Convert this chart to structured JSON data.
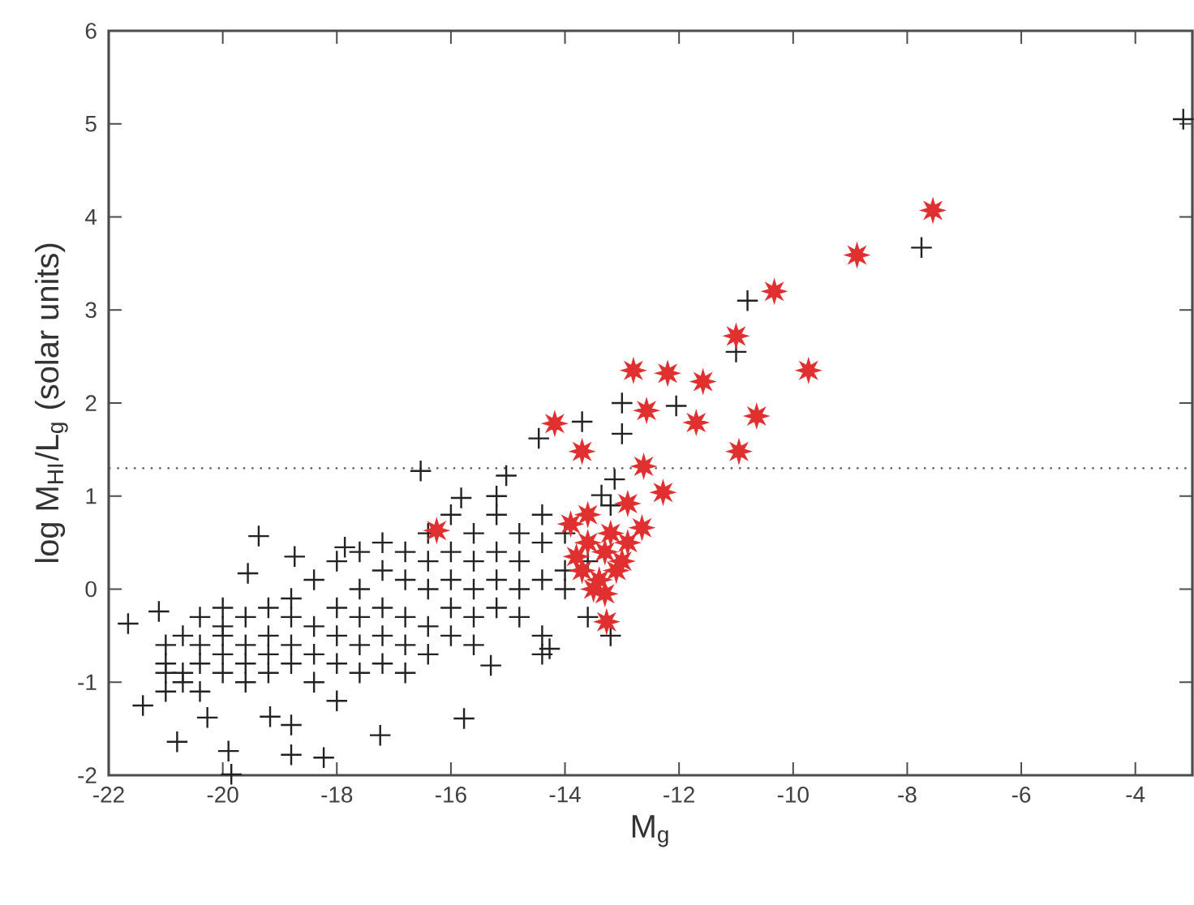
{
  "chart_data": {
    "type": "scatter",
    "xlabel": "M$_{g}$",
    "ylabel": "log M$_{HI}$/L$_{g}$ (solar units)",
    "xlim": [
      -22,
      -3
    ],
    "ylim": [
      -2,
      6
    ],
    "xticks": [
      -22,
      -20,
      -18,
      -16,
      -14,
      -12,
      -10,
      -8,
      -6,
      -4
    ],
    "yticks": [
      -2,
      -1,
      0,
      1,
      2,
      3,
      4,
      5,
      6
    ],
    "grid": false,
    "ref_lines": [
      {
        "axis": "y",
        "value": 1.3,
        "color": "#555555",
        "line_style": "dotted"
      }
    ],
    "series": [
      {
        "color": "#222222",
        "marker": "cross",
        "x": [
          -3.16,
          -7.75,
          -10.8,
          -11.0,
          -13.0,
          -12.05,
          -14.46,
          -13.7,
          -15.03,
          -13.36,
          -13.13,
          -13.0,
          -21.66,
          -21.4,
          -20.8,
          -20.27,
          -19.9,
          -19.85,
          -19.37,
          -18.74,
          -19.17,
          -18.8,
          -18.8,
          -18.23,
          -17.24,
          -15.77,
          -15.3,
          -16.53,
          -15.82,
          -17.86,
          -21.12,
          -19.56,
          -14.27,
          -21.0,
          -21.0,
          -21.0,
          -21.0,
          -20.7,
          -20.7,
          -20.7,
          -20.4,
          -20.4,
          -20.4,
          -20.4,
          -20.0,
          -20.0,
          -20.0,
          -20.0,
          -20.0,
          -19.6,
          -19.6,
          -19.6,
          -19.6,
          -19.2,
          -19.2,
          -19.2,
          -19.2,
          -18.8,
          -18.8,
          -18.8,
          -18.8,
          -18.4,
          -18.4,
          -18.4,
          -18.4,
          -18.0,
          -18.0,
          -18.0,
          -18.0,
          -18.0,
          -17.6,
          -17.6,
          -17.6,
          -17.6,
          -17.6,
          -17.2,
          -17.2,
          -17.2,
          -17.2,
          -17.2,
          -16.8,
          -16.8,
          -16.8,
          -16.8,
          -16.8,
          -16.4,
          -16.4,
          -16.4,
          -16.4,
          -16.4,
          -16.0,
          -16.0,
          -16.0,
          -16.0,
          -16.0,
          -15.6,
          -15.6,
          -15.6,
          -15.6,
          -15.6,
          -15.2,
          -15.2,
          -15.2,
          -15.2,
          -15.2,
          -14.8,
          -14.8,
          -14.8,
          -14.8,
          -14.4,
          -14.4,
          -14.4,
          -14.4,
          -14.4,
          -14.0,
          -14.0,
          -14.0,
          -13.6,
          -13.6,
          -13.2,
          -13.2
        ],
        "values": [
          5.05,
          3.67,
          3.1,
          2.55,
          2.0,
          1.97,
          1.62,
          1.8,
          1.22,
          1.01,
          1.18,
          1.67,
          -0.37,
          -1.25,
          -1.64,
          -1.38,
          -1.74,
          -1.99,
          0.57,
          0.35,
          -1.37,
          -1.46,
          -1.78,
          -1.81,
          -1.57,
          -1.39,
          -0.82,
          1.27,
          0.98,
          0.45,
          -0.24,
          0.17,
          -0.64,
          -0.9,
          -0.6,
          -1.1,
          -0.8,
          -0.5,
          -0.9,
          -1.0,
          -0.3,
          -0.6,
          -0.8,
          -1.1,
          -0.4,
          -0.7,
          -0.5,
          -0.9,
          -0.2,
          -0.6,
          -0.3,
          -0.8,
          -1.0,
          -0.5,
          -0.2,
          -0.7,
          -0.9,
          -0.6,
          -0.3,
          -0.1,
          -0.8,
          -0.4,
          -0.7,
          0.1,
          -1.0,
          -0.2,
          -0.5,
          -0.8,
          0.3,
          -1.2,
          -0.3,
          0.0,
          -0.6,
          0.4,
          -0.9,
          0.2,
          -0.2,
          -0.5,
          -0.8,
          0.5,
          0.1,
          -0.3,
          -0.6,
          0.4,
          -0.9,
          0.0,
          0.3,
          -0.4,
          -0.7,
          0.6,
          0.1,
          -0.2,
          0.4,
          -0.5,
          0.8,
          0.0,
          0.3,
          -0.3,
          -0.6,
          0.6,
          0.1,
          0.4,
          -0.2,
          0.8,
          1.0,
          0.0,
          0.3,
          0.6,
          -0.3,
          0.1,
          0.5,
          0.8,
          -0.5,
          -0.7,
          0.2,
          0.6,
          0.0,
          0.3,
          -0.3,
          -0.5,
          0.9
        ]
      },
      {
        "color": "#e03030",
        "marker": "star",
        "x": [
          -7.55,
          -8.88,
          -10.33,
          -11.0,
          -9.73,
          -12.8,
          -12.2,
          -11.58,
          -12.57,
          -11.7,
          -10.64,
          -10.95,
          -14.18,
          -13.7,
          -12.62,
          -12.28,
          -12.9,
          -12.65,
          -13.27,
          -16.25,
          -13.9,
          -13.6,
          -13.3,
          -13.7,
          -13.4,
          -13.1,
          -13.5,
          -13.2,
          -13.0,
          -13.8,
          -13.3,
          -13.6,
          -12.9
        ],
        "values": [
          4.07,
          3.59,
          3.2,
          2.72,
          2.35,
          2.35,
          2.32,
          2.23,
          1.92,
          1.79,
          1.86,
          1.48,
          1.78,
          1.48,
          1.32,
          1.04,
          0.92,
          0.66,
          -0.35,
          0.63,
          0.7,
          0.5,
          0.4,
          0.2,
          0.1,
          0.2,
          0.0,
          0.6,
          0.3,
          0.35,
          -0.05,
          0.8,
          0.5
        ]
      }
    ]
  }
}
